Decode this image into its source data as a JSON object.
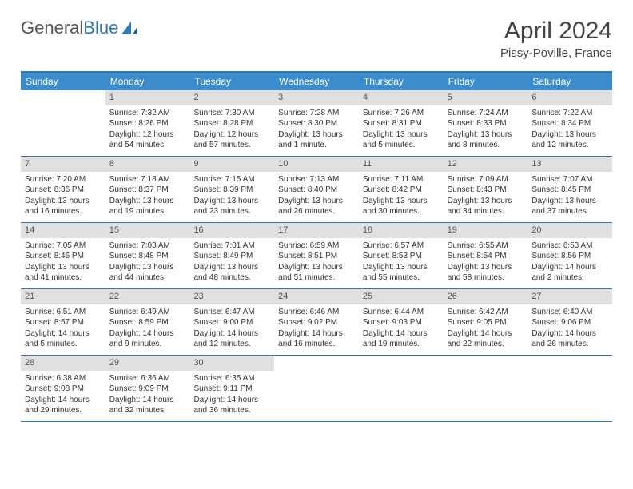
{
  "header": {
    "logo_general": "General",
    "logo_blue": "Blue",
    "month_title": "April 2024",
    "location": "Pissy-Poville, France"
  },
  "colors": {
    "brand_blue": "#2a7ab9",
    "header_blue": "#3a8ccc",
    "daynum_bg": "#e0e0e0",
    "text": "#333333"
  },
  "days_of_week": [
    "Sunday",
    "Monday",
    "Tuesday",
    "Wednesday",
    "Thursday",
    "Friday",
    "Saturday"
  ],
  "weeks": [
    [
      {
        "n": "",
        "empty": true
      },
      {
        "n": "1",
        "sr": "7:32 AM",
        "ss": "8:26 PM",
        "dl": "12 hours and 54 minutes."
      },
      {
        "n": "2",
        "sr": "7:30 AM",
        "ss": "8:28 PM",
        "dl": "12 hours and 57 minutes."
      },
      {
        "n": "3",
        "sr": "7:28 AM",
        "ss": "8:30 PM",
        "dl": "13 hours and 1 minute."
      },
      {
        "n": "4",
        "sr": "7:26 AM",
        "ss": "8:31 PM",
        "dl": "13 hours and 5 minutes."
      },
      {
        "n": "5",
        "sr": "7:24 AM",
        "ss": "8:33 PM",
        "dl": "13 hours and 8 minutes."
      },
      {
        "n": "6",
        "sr": "7:22 AM",
        "ss": "8:34 PM",
        "dl": "13 hours and 12 minutes."
      }
    ],
    [
      {
        "n": "7",
        "sr": "7:20 AM",
        "ss": "8:36 PM",
        "dl": "13 hours and 16 minutes."
      },
      {
        "n": "8",
        "sr": "7:18 AM",
        "ss": "8:37 PM",
        "dl": "13 hours and 19 minutes."
      },
      {
        "n": "9",
        "sr": "7:15 AM",
        "ss": "8:39 PM",
        "dl": "13 hours and 23 minutes."
      },
      {
        "n": "10",
        "sr": "7:13 AM",
        "ss": "8:40 PM",
        "dl": "13 hours and 26 minutes."
      },
      {
        "n": "11",
        "sr": "7:11 AM",
        "ss": "8:42 PM",
        "dl": "13 hours and 30 minutes."
      },
      {
        "n": "12",
        "sr": "7:09 AM",
        "ss": "8:43 PM",
        "dl": "13 hours and 34 minutes."
      },
      {
        "n": "13",
        "sr": "7:07 AM",
        "ss": "8:45 PM",
        "dl": "13 hours and 37 minutes."
      }
    ],
    [
      {
        "n": "14",
        "sr": "7:05 AM",
        "ss": "8:46 PM",
        "dl": "13 hours and 41 minutes."
      },
      {
        "n": "15",
        "sr": "7:03 AM",
        "ss": "8:48 PM",
        "dl": "13 hours and 44 minutes."
      },
      {
        "n": "16",
        "sr": "7:01 AM",
        "ss": "8:49 PM",
        "dl": "13 hours and 48 minutes."
      },
      {
        "n": "17",
        "sr": "6:59 AM",
        "ss": "8:51 PM",
        "dl": "13 hours and 51 minutes."
      },
      {
        "n": "18",
        "sr": "6:57 AM",
        "ss": "8:53 PM",
        "dl": "13 hours and 55 minutes."
      },
      {
        "n": "19",
        "sr": "6:55 AM",
        "ss": "8:54 PM",
        "dl": "13 hours and 58 minutes."
      },
      {
        "n": "20",
        "sr": "6:53 AM",
        "ss": "8:56 PM",
        "dl": "14 hours and 2 minutes."
      }
    ],
    [
      {
        "n": "21",
        "sr": "6:51 AM",
        "ss": "8:57 PM",
        "dl": "14 hours and 5 minutes."
      },
      {
        "n": "22",
        "sr": "6:49 AM",
        "ss": "8:59 PM",
        "dl": "14 hours and 9 minutes."
      },
      {
        "n": "23",
        "sr": "6:47 AM",
        "ss": "9:00 PM",
        "dl": "14 hours and 12 minutes."
      },
      {
        "n": "24",
        "sr": "6:46 AM",
        "ss": "9:02 PM",
        "dl": "14 hours and 16 minutes."
      },
      {
        "n": "25",
        "sr": "6:44 AM",
        "ss": "9:03 PM",
        "dl": "14 hours and 19 minutes."
      },
      {
        "n": "26",
        "sr": "6:42 AM",
        "ss": "9:05 PM",
        "dl": "14 hours and 22 minutes."
      },
      {
        "n": "27",
        "sr": "6:40 AM",
        "ss": "9:06 PM",
        "dl": "14 hours and 26 minutes."
      }
    ],
    [
      {
        "n": "28",
        "sr": "6:38 AM",
        "ss": "9:08 PM",
        "dl": "14 hours and 29 minutes."
      },
      {
        "n": "29",
        "sr": "6:36 AM",
        "ss": "9:09 PM",
        "dl": "14 hours and 32 minutes."
      },
      {
        "n": "30",
        "sr": "6:35 AM",
        "ss": "9:11 PM",
        "dl": "14 hours and 36 minutes."
      },
      {
        "n": "",
        "empty": true
      },
      {
        "n": "",
        "empty": true
      },
      {
        "n": "",
        "empty": true
      },
      {
        "n": "",
        "empty": true
      }
    ]
  ],
  "labels": {
    "sunrise": "Sunrise:",
    "sunset": "Sunset:",
    "daylight": "Daylight:"
  }
}
